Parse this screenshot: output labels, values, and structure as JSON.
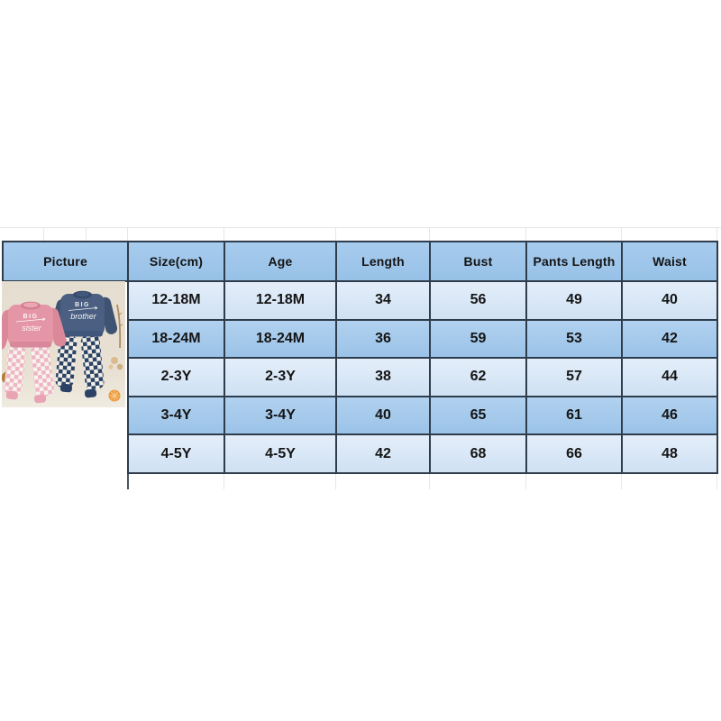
{
  "table": {
    "columns": [
      {
        "key": "picture",
        "label": "Picture"
      },
      {
        "key": "size",
        "label": "Size(cm)"
      },
      {
        "key": "age",
        "label": "Age"
      },
      {
        "key": "length",
        "label": "Length"
      },
      {
        "key": "bust",
        "label": "Bust"
      },
      {
        "key": "pants_length",
        "label": "Pants Length"
      },
      {
        "key": "waist",
        "label": "Waist"
      }
    ],
    "rows": [
      {
        "size": "12-18M",
        "age": "12-18M",
        "length": "34",
        "bust": "56",
        "pants_length": "49",
        "waist": "40",
        "shade": "light"
      },
      {
        "size": "18-24M",
        "age": "18-24M",
        "length": "36",
        "bust": "59",
        "pants_length": "53",
        "waist": "42",
        "shade": "medium"
      },
      {
        "size": "2-3Y",
        "age": "2-3Y",
        "length": "38",
        "bust": "62",
        "pants_length": "57",
        "waist": "44",
        "shade": "light"
      },
      {
        "size": "3-4Y",
        "age": "3-4Y",
        "length": "40",
        "bust": "65",
        "pants_length": "61",
        "waist": "46",
        "shade": "medium"
      },
      {
        "size": "4-5Y",
        "age": "4-5Y",
        "length": "42",
        "bust": "68",
        "pants_length": "66",
        "waist": "48",
        "shade": "light"
      }
    ]
  },
  "chart_data": {
    "type": "table",
    "columns": [
      "Picture",
      "Size(cm)",
      "Age",
      "Length",
      "Bust",
      "Pants Length",
      "Waist"
    ],
    "rows": [
      [
        "photo",
        "12-18M",
        "12-18M",
        34,
        56,
        49,
        40
      ],
      [
        "photo",
        "18-24M",
        "18-24M",
        36,
        59,
        53,
        42
      ],
      [
        "photo",
        "2-3Y",
        "2-3Y",
        38,
        62,
        57,
        44
      ],
      [
        "",
        "3-4Y",
        "3-4Y",
        40,
        65,
        61,
        46
      ],
      [
        "",
        "4-5Y",
        "4-5Y",
        42,
        68,
        66,
        48
      ]
    ]
  },
  "photo": {
    "alt": "Two toddler outfit sets on a beige background: pink sweatshirt printed BIG sister with pink checkered pants, and navy sweatshirt printed BIG brother with navy checkered pants",
    "pink_print_word1": "BIG",
    "pink_print_word2": "sister",
    "navy_print_word1": "BIG",
    "navy_print_word2": "brother"
  },
  "colors": {
    "line": "#2e3c4b",
    "header_top": "#a7ccee",
    "header_bottom": "#98c1e7",
    "row_light_top": "#e4eefa",
    "row_light_bottom": "#cfe1f3",
    "row_medium_top": "#b1d1ef",
    "row_medium_bottom": "#9bc3e8",
    "text": "#141414",
    "gridline": "#e7e7e7",
    "photo_bg": "#e5ddcf",
    "pink": "#e596a6",
    "navy": "#4a5f81"
  }
}
